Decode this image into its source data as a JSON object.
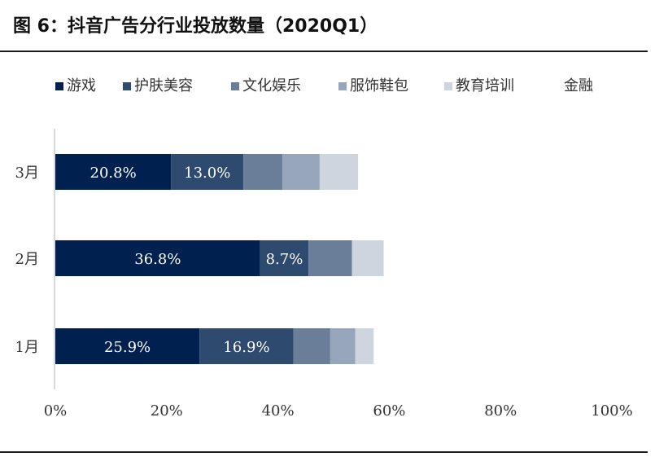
{
  "title": "图 6：抖音广告分行业投放数量（2020Q1）",
  "chart_data": {
    "type": "bar",
    "orientation": "horizontal",
    "stacked": "percent",
    "categories": [
      "3月",
      "2月",
      "1月"
    ],
    "series": [
      {
        "name": "游戏",
        "color": "#002050",
        "values": [
          20.8,
          36.8,
          25.9
        ],
        "labels": [
          "20.8%",
          "36.8%",
          "25.9%"
        ]
      },
      {
        "name": "护肤美容",
        "color": "#2e4a6e",
        "values": [
          13.0,
          8.7,
          16.9
        ],
        "labels": [
          "13.0%",
          "8.7%",
          "16.9%"
        ]
      },
      {
        "name": "文化娱乐",
        "color": "#6a7d99",
        "values": [
          7.0,
          7.8,
          6.6
        ],
        "labels": [
          "",
          "",
          ""
        ]
      },
      {
        "name": "服饰鞋包",
        "color": "#97a6bb",
        "values": [
          6.7,
          0,
          4.5
        ],
        "labels": [
          "",
          "",
          ""
        ]
      },
      {
        "name": "教育培训",
        "color": "#ced5df",
        "values": [
          6.9,
          5.7,
          3.3
        ],
        "labels": [
          "",
          "",
          ""
        ]
      },
      {
        "name": "金融",
        "color": "#ffffff",
        "values": [
          0,
          0,
          0
        ],
        "labels": [
          "",
          "",
          ""
        ]
      }
    ],
    "xlim": [
      0,
      100
    ],
    "xticks": [
      "0%",
      "20%",
      "40%",
      "60%",
      "80%",
      "100%"
    ],
    "legend_position": "top"
  }
}
